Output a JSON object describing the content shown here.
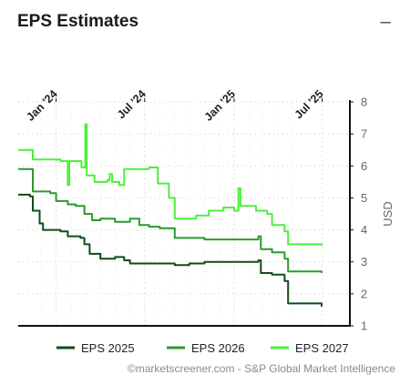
{
  "header": {
    "title": "EPS Estimates",
    "collapse_icon": "minus-icon"
  },
  "credit": "©marketscreener.com - S&P Global Market Intelligence",
  "chart_data": {
    "type": "line",
    "x_range": [
      "2023-10-15",
      "2025-06-30"
    ],
    "x_ticks": [
      {
        "label": "Jan '24",
        "date": "2024-01-01"
      },
      {
        "label": "Jul '24",
        "date": "2024-07-01"
      },
      {
        "label": "Jan '25",
        "date": "2025-01-01"
      },
      {
        "label": "Jul '25",
        "date": "2025-07-01"
      }
    ],
    "y_ticks": [
      1,
      2,
      3,
      4,
      5,
      6,
      7,
      8
    ],
    "ylim": [
      1,
      8
    ],
    "ylabel": "USD",
    "grid": "dotted",
    "legend_position": "bottom",
    "series": [
      {
        "name": "EPS 2025",
        "color": "#0f4d1a",
        "points": [
          [
            "2023-10-15",
            5.1
          ],
          [
            "2023-11-08",
            5.05
          ],
          [
            "2023-11-14",
            4.6
          ],
          [
            "2023-11-28",
            4.2
          ],
          [
            "2023-12-05",
            4.0
          ],
          [
            "2024-01-10",
            3.95
          ],
          [
            "2024-01-25",
            3.8
          ],
          [
            "2024-02-20",
            3.75
          ],
          [
            "2024-02-28",
            3.55
          ],
          [
            "2024-03-10",
            3.25
          ],
          [
            "2024-04-01",
            3.1
          ],
          [
            "2024-05-01",
            3.15
          ],
          [
            "2024-05-20",
            3.05
          ],
          [
            "2024-06-01",
            2.95
          ],
          [
            "2024-09-01",
            2.9
          ],
          [
            "2024-10-01",
            2.95
          ],
          [
            "2024-11-01",
            3.0
          ],
          [
            "2025-02-20",
            3.05
          ],
          [
            "2025-02-25",
            2.65
          ],
          [
            "2025-03-20",
            2.6
          ],
          [
            "2025-04-15",
            2.4
          ],
          [
            "2025-04-22",
            1.7
          ],
          [
            "2025-06-30",
            1.6
          ]
        ]
      },
      {
        "name": "EPS 2026",
        "color": "#2b9a2b",
        "points": [
          [
            "2023-10-15",
            5.9
          ],
          [
            "2023-11-08",
            5.9
          ],
          [
            "2023-11-14",
            5.2
          ],
          [
            "2023-12-20",
            5.15
          ],
          [
            "2024-01-01",
            4.9
          ],
          [
            "2024-01-25",
            4.8
          ],
          [
            "2024-02-10",
            4.75
          ],
          [
            "2024-02-28",
            4.5
          ],
          [
            "2024-03-15",
            4.3
          ],
          [
            "2024-04-01",
            4.35
          ],
          [
            "2024-05-01",
            4.25
          ],
          [
            "2024-06-01",
            4.35
          ],
          [
            "2024-06-20",
            4.15
          ],
          [
            "2024-07-10",
            4.1
          ],
          [
            "2024-08-01",
            4.05
          ],
          [
            "2024-09-01",
            3.75
          ],
          [
            "2024-11-01",
            3.7
          ],
          [
            "2025-02-20",
            3.8
          ],
          [
            "2025-02-25",
            3.4
          ],
          [
            "2025-03-20",
            3.3
          ],
          [
            "2025-04-15",
            3.1
          ],
          [
            "2025-04-22",
            2.7
          ],
          [
            "2025-06-30",
            2.65
          ]
        ]
      },
      {
        "name": "EPS 2027",
        "color": "#4cf03c",
        "points": [
          [
            "2023-10-15",
            6.5
          ],
          [
            "2023-11-08",
            6.5
          ],
          [
            "2023-11-14",
            6.2
          ],
          [
            "2024-01-10",
            6.15
          ],
          [
            "2024-01-25",
            5.4
          ],
          [
            "2024-01-28",
            6.15
          ],
          [
            "2024-02-22",
            5.95
          ],
          [
            "2024-03-01",
            7.3
          ],
          [
            "2024-03-04",
            5.7
          ],
          [
            "2024-03-20",
            5.5
          ],
          [
            "2024-04-15",
            5.55
          ],
          [
            "2024-04-20",
            5.75
          ],
          [
            "2024-04-25",
            5.5
          ],
          [
            "2024-05-10",
            5.4
          ],
          [
            "2024-05-20",
            5.9
          ],
          [
            "2024-07-10",
            5.95
          ],
          [
            "2024-07-28",
            5.45
          ],
          [
            "2024-08-20",
            5.0
          ],
          [
            "2024-09-01",
            4.35
          ],
          [
            "2024-10-15",
            4.45
          ],
          [
            "2024-11-10",
            4.6
          ],
          [
            "2024-12-10",
            4.7
          ],
          [
            "2025-01-01",
            4.6
          ],
          [
            "2025-01-10",
            5.3
          ],
          [
            "2025-01-14",
            4.75
          ],
          [
            "2025-02-15",
            4.6
          ],
          [
            "2025-03-10",
            4.5
          ],
          [
            "2025-03-20",
            4.15
          ],
          [
            "2025-04-15",
            3.95
          ],
          [
            "2025-04-22",
            3.55
          ],
          [
            "2025-06-30",
            3.5
          ]
        ]
      }
    ]
  }
}
